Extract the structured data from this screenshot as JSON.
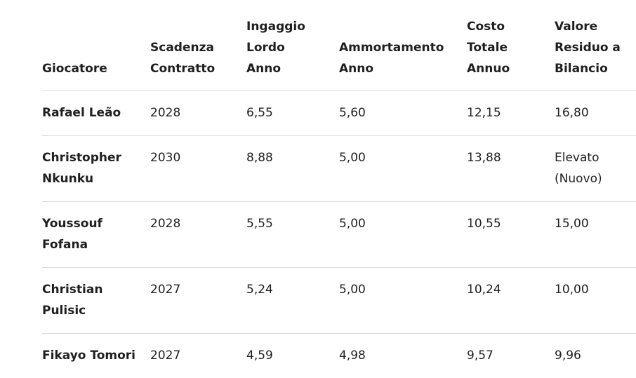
{
  "table": {
    "header": [
      [
        "Giocatore"
      ],
      [
        "Scadenza",
        "Contratto"
      ],
      [
        "Ingaggio",
        "Lordo",
        "Anno"
      ],
      [
        "Ammortamento",
        "Anno"
      ],
      [
        "Costo",
        "Totale",
        "Annuo"
      ],
      [
        "Valore",
        "Residuo a",
        "Bilancio"
      ]
    ],
    "rows": [
      [
        "Rafael Leão",
        "2028",
        "6,55",
        "5,60",
        "12,15",
        "16,80"
      ],
      [
        "Christopher Nkunku",
        "2030",
        "8,88",
        "5,00",
        "13,88",
        "Elevato (Nuovo)"
      ],
      [
        "Youssouf Fofana",
        "2028",
        "5,55",
        "5,00",
        "10,55",
        "15,00"
      ],
      [
        "Christian Pulisic",
        "2027",
        "5,24",
        "5,00",
        "10,24",
        "10,00"
      ],
      [
        "Fikayo Tomori",
        "2027",
        "4,59",
        "4,98",
        "9,57",
        "9,96"
      ]
    ]
  }
}
